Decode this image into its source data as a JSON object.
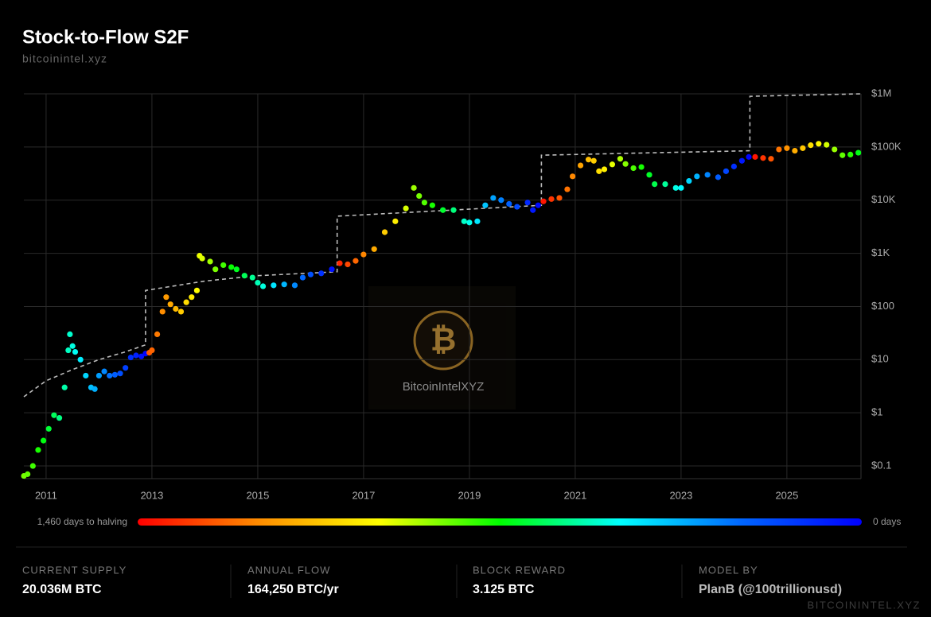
{
  "chart_data": {
    "type": "scatter",
    "title": "Stock-to-Flow S2F",
    "subtitle": "bitcoinintel.xyz",
    "log_y": true,
    "grid": true,
    "xlim": [
      2010.58,
      2026.4
    ],
    "xticks": [
      2011,
      2013,
      2015,
      2017,
      2019,
      2021,
      2023,
      2025
    ],
    "ylim": [
      0.0577,
      1000000
    ],
    "yticks": [
      {
        "value": 0.1,
        "label": "$0.1"
      },
      {
        "value": 1,
        "label": "$1"
      },
      {
        "value": 10,
        "label": "$10"
      },
      {
        "value": 100,
        "label": "$100"
      },
      {
        "value": 1000,
        "label": "$1K"
      },
      {
        "value": 10000,
        "label": "$10K"
      },
      {
        "value": 100000,
        "label": "$100K"
      },
      {
        "value": 1000000,
        "label": "$1M"
      }
    ],
    "x": [
      2010.58,
      2010.65,
      2010.75,
      2010.85,
      2010.95,
      2011.05,
      2011.15,
      2011.25,
      2011.35,
      2011.42,
      2011.45,
      2011.5,
      2011.55,
      2011.65,
      2011.75,
      2011.85,
      2011.92,
      2012.0,
      2012.1,
      2012.2,
      2012.3,
      2012.4,
      2012.5,
      2012.6,
      2012.7,
      2012.8,
      2012.88,
      2012.95,
      2013.0,
      2013.1,
      2013.2,
      2013.27,
      2013.35,
      2013.45,
      2013.55,
      2013.65,
      2013.75,
      2013.85,
      2013.9,
      2013.95,
      2014.1,
      2014.2,
      2014.35,
      2014.5,
      2014.6,
      2014.75,
      2014.9,
      2015.0,
      2015.1,
      2015.3,
      2015.5,
      2015.7,
      2015.85,
      2016.0,
      2016.2,
      2016.4,
      2016.55,
      2016.7,
      2016.85,
      2017.0,
      2017.2,
      2017.4,
      2017.6,
      2017.8,
      2017.95,
      2018.05,
      2018.15,
      2018.3,
      2018.5,
      2018.7,
      2018.9,
      2019.0,
      2019.15,
      2019.3,
      2019.45,
      2019.6,
      2019.75,
      2019.9,
      2020.1,
      2020.2,
      2020.3,
      2020.4,
      2020.55,
      2020.7,
      2020.85,
      2020.95,
      2021.1,
      2021.25,
      2021.35,
      2021.45,
      2021.55,
      2021.7,
      2021.85,
      2021.95,
      2022.1,
      2022.25,
      2022.4,
      2022.5,
      2022.7,
      2022.9,
      2023.0,
      2023.15,
      2023.3,
      2023.5,
      2023.7,
      2023.85,
      2024.0,
      2024.15,
      2024.28,
      2024.4,
      2024.55,
      2024.7,
      2024.85,
      2025.0,
      2025.15,
      2025.3,
      2025.45,
      2025.6,
      2025.75,
      2025.9,
      2026.05,
      2026.2,
      2026.35
    ],
    "values": [
      0.065,
      0.07,
      0.1,
      0.2,
      0.3,
      0.5,
      0.9,
      0.8,
      3,
      15,
      30,
      18,
      14,
      10,
      5,
      3,
      2.8,
      5,
      6,
      5,
      5.2,
      5.5,
      7,
      11,
      12,
      11.5,
      13,
      13.5,
      15,
      30,
      80,
      150,
      110,
      90,
      80,
      120,
      150,
      200,
      900,
      800,
      700,
      500,
      600,
      550,
      500,
      380,
      350,
      280,
      240,
      250,
      260,
      250,
      350,
      400,
      420,
      500,
      650,
      620,
      720,
      950,
      1200,
      2500,
      4000,
      7000,
      17000,
      12000,
      9000,
      8000,
      6500,
      6500,
      4000,
      3800,
      4000,
      8000,
      11000,
      10000,
      8500,
      7500,
      9000,
      6500,
      8000,
      9500,
      10500,
      11000,
      16000,
      28000,
      45000,
      58000,
      55000,
      35000,
      38000,
      47000,
      60000,
      48000,
      40000,
      42000,
      30000,
      20000,
      20000,
      17000,
      17000,
      23000,
      28000,
      30000,
      27000,
      35000,
      43000,
      55000,
      65000,
      65000,
      62000,
      60000,
      90000,
      95000,
      85000,
      95000,
      108000,
      115000,
      110000,
      90000,
      70000,
      72000,
      78000
    ],
    "color_values": [
      843,
      825,
      790,
      752,
      715,
      679,
      642,
      606,
      569,
      544,
      533,
      515,
      496,
      460,
      423,
      387,
      361,
      332,
      296,
      259,
      223,
      186,
      150,
      113,
      77,
      40,
      11,
      1303,
      1285,
      1248,
      1212,
      1186,
      1157,
      1121,
      1084,
      1048,
      1011,
      975,
      956,
      938,
      883,
      847,
      792,
      737,
      701,
      646,
      591,
      555,
      518,
      445,
      372,
      299,
      245,
      190,
      117,
      44,
      1391,
      1336,
      1281,
      1227,
      1154,
      1081,
      1008,
      935,
      880,
      843,
      807,
      752,
      686,
      613,
      540,
      504,
      449,
      394,
      339,
      285,
      230,
      175,
      95,
      58,
      22,
      1424,
      1369,
      1314,
      1260,
      1223,
      1168,
      1114,
      1077,
      1041,
      1004,
      949,
      895,
      858,
      803,
      749,
      693,
      657,
      584,
      511,
      475,
      420,
      365,
      292,
      219,
      164,
      110,
      55,
      7,
      1424,
      1369,
      1314,
      1260,
      1205,
      1150,
      1095,
      1041,
      986,
      931,
      876,
      822,
      767,
      712
    ],
    "model": {
      "color": "#bbbbbb",
      "dashed": true,
      "x": [
        2010.58,
        2011,
        2011.5,
        2012,
        2012.5,
        2012.88,
        2012.88,
        2014,
        2015,
        2016.5,
        2016.5,
        2018,
        2020.36,
        2020.36,
        2022,
        2024.3,
        2024.3,
        2026.4
      ],
      "values": [
        2,
        4,
        6.5,
        10,
        14,
        19,
        200,
        300,
        380,
        450,
        5000,
        6000,
        8000,
        70000,
        76000,
        85000,
        900000,
        1000000
      ]
    },
    "colorbar": {
      "clim": [
        1460,
        0
      ],
      "colors": [
        "#ff0000",
        "#ff8c00",
        "#ffff00",
        "#00ff00",
        "#00ffff",
        "#0066ff",
        "#0000ff"
      ],
      "min_label": "1,460 days to halving",
      "max_label": "0 days"
    },
    "watermark": {
      "symbol": "₿",
      "text": "BitcoinIntelXYZ"
    }
  },
  "footer": {
    "stats": [
      {
        "label": "CURRENT SUPPLY",
        "value": "20.036M BTC"
      },
      {
        "label": "ANNUAL FLOW",
        "value": "164,250 BTC/yr"
      },
      {
        "label": "BLOCK REWARD",
        "value": "3.125 BTC"
      },
      {
        "label": "MODEL BY",
        "value": "PlanB (@100trillionusd)"
      }
    ],
    "credit": "BITCOININTEL.XYZ"
  }
}
